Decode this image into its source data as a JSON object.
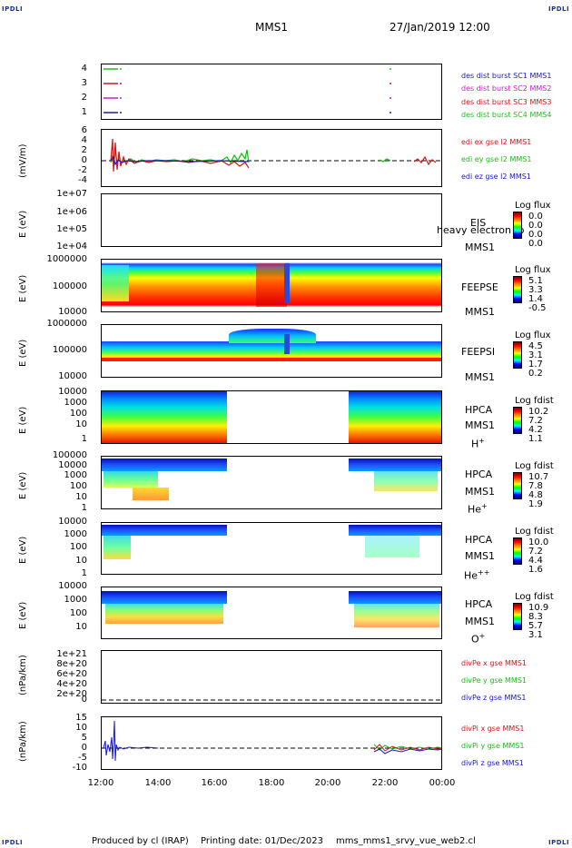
{
  "corners": {
    "text": "IPDLI"
  },
  "header": {
    "title": "MMS1",
    "datetime": "27/Jan/2019 12:00"
  },
  "colors": {
    "mms1": "#1a1aa6",
    "mms2": "#cc1a1a",
    "mms3": "#cc1acc",
    "mms4": "#22bb22",
    "red": "#d01818",
    "green": "#10c010",
    "blue": "#1818c0",
    "brand": "#1c2fa8"
  },
  "chart_data": [
    {
      "type": "line",
      "title": "",
      "ylabel": "",
      "ylim": [
        1,
        4
      ],
      "yticks": [
        "4",
        "3",
        "2",
        "1"
      ],
      "series": [
        {
          "name": "des dist burst SC1 MMS1",
          "color": "#1a1aa6",
          "level": 1
        },
        {
          "name": "des dist burst SC2 MMS2",
          "color": "#cc1acc",
          "level": 2
        },
        {
          "name": "des dist burst SC3 MMS3",
          "color": "#cc1a1a",
          "level": 3
        },
        {
          "name": "des dist burst SC4 MMS4",
          "color": "#22bb22",
          "level": 4
        }
      ]
    },
    {
      "type": "line",
      "ylabel": "(mV/m)",
      "ylim": [
        -4,
        6
      ],
      "yticks": [
        "6",
        "4",
        "2",
        "0",
        "-2",
        "-4"
      ],
      "series": [
        {
          "name": "edi ex gse l2 MMS1",
          "color": "#d01818"
        },
        {
          "name": "edi ey gse l2 MMS1",
          "color": "#10c010"
        },
        {
          "name": "edi ez gse l2 MMS1",
          "color": "#1818c0"
        }
      ]
    },
    {
      "type": "heatmap",
      "ylabel": "E (eV)",
      "yscale": "log",
      "yticks": [
        "1e+07",
        "1e+06",
        "1e+05",
        "1e+04"
      ],
      "instrument": "EIS",
      "sc": "MMS1",
      "overlay": "heavy electron to",
      "colorbar": {
        "title": "Log flux",
        "values": [
          "0.0",
          "0.0",
          "0.0",
          "0.0"
        ]
      }
    },
    {
      "type": "heatmap",
      "ylabel": "E (eV)",
      "yscale": "log",
      "yticks": [
        "1000000",
        "100000",
        "10000"
      ],
      "instrument": "FEEPSE",
      "sc": "MMS1",
      "colorbar": {
        "title": "Log flux",
        "values": [
          "5.1",
          "3.3",
          "1.4",
          "-0.5"
        ]
      }
    },
    {
      "type": "heatmap",
      "ylabel": "E (eV)",
      "yscale": "log",
      "yticks": [
        "1000000",
        "100000",
        "10000"
      ],
      "instrument": "FEEPSI",
      "sc": "MMS1",
      "colorbar": {
        "title": "Log flux",
        "values": [
          "4.5",
          "3.1",
          "1.7",
          "0.2"
        ]
      }
    },
    {
      "type": "heatmap",
      "ylabel": "E (eV)",
      "yscale": "log",
      "yticks": [
        "10000",
        "1000",
        "100",
        "10",
        "1"
      ],
      "instrument": "HPCA",
      "sc": "MMS1",
      "species": "H",
      "charge": "+",
      "colorbar": {
        "title": "Log fdist",
        "values": [
          "10.2",
          "7.2",
          "4.2",
          "1.1"
        ]
      }
    },
    {
      "type": "heatmap",
      "ylabel": "E (eV)",
      "yscale": "log",
      "yticks": [
        "100000",
        "10000",
        "1000",
        "100",
        "10",
        "1"
      ],
      "instrument": "HPCA",
      "sc": "MMS1",
      "species": "He",
      "charge": "+",
      "colorbar": {
        "title": "Log fdist",
        "values": [
          "10.7",
          "7.8",
          "4.8",
          "1.9"
        ]
      }
    },
    {
      "type": "heatmap",
      "ylabel": "E (eV)",
      "yscale": "log",
      "yticks": [
        "10000",
        "1000",
        "100",
        "10",
        "1"
      ],
      "instrument": "HPCA",
      "sc": "MMS1",
      "species": "He",
      "charge": "++",
      "colorbar": {
        "title": "Log fdist",
        "values": [
          "10.0",
          "7.2",
          "4.4",
          "1.6"
        ]
      }
    },
    {
      "type": "heatmap",
      "ylabel": "E (eV)",
      "yscale": "log",
      "yticks": [
        "10000",
        "1000",
        "100",
        "10"
      ],
      "instrument": "HPCA",
      "sc": "MMS1",
      "species": "O",
      "charge": "+",
      "colorbar": {
        "title": "Log fdist",
        "values": [
          "10.9",
          "8.3",
          "5.7",
          "3.1"
        ]
      }
    },
    {
      "type": "line",
      "ylabel": "(nPa/km)",
      "ylim": [
        0,
        1e+21
      ],
      "yticks": [
        "1e+21",
        "8e+20",
        "6e+20",
        "4e+20",
        "2e+20",
        "0"
      ],
      "series": [
        {
          "name": "divPe x gse MMS1",
          "color": "#d01818"
        },
        {
          "name": "divPe y gse MMS1",
          "color": "#10c010"
        },
        {
          "name": "divPe z gse MMS1",
          "color": "#1818c0"
        }
      ]
    },
    {
      "type": "line",
      "ylabel": "(nPa/km)",
      "ylim": [
        -10,
        15
      ],
      "yticks": [
        "15",
        "10",
        "5",
        "0",
        "-5",
        "-10"
      ],
      "series": [
        {
          "name": "divPi x gse MMS1",
          "color": "#d01818"
        },
        {
          "name": "divPi y gse MMS1",
          "color": "#10c010"
        },
        {
          "name": "divPi z gse MMS1",
          "color": "#1818c0"
        }
      ]
    }
  ],
  "xaxis": {
    "ticks": [
      "12:00",
      "14:00",
      "16:00",
      "18:00",
      "20:00",
      "22:00",
      "00:00"
    ]
  },
  "footer": {
    "produced": "Produced by cl (IRAP)",
    "printing": "Printing date: 01/Dec/2023",
    "script": "mms_mms1_srvy_vue_web2.cl"
  }
}
